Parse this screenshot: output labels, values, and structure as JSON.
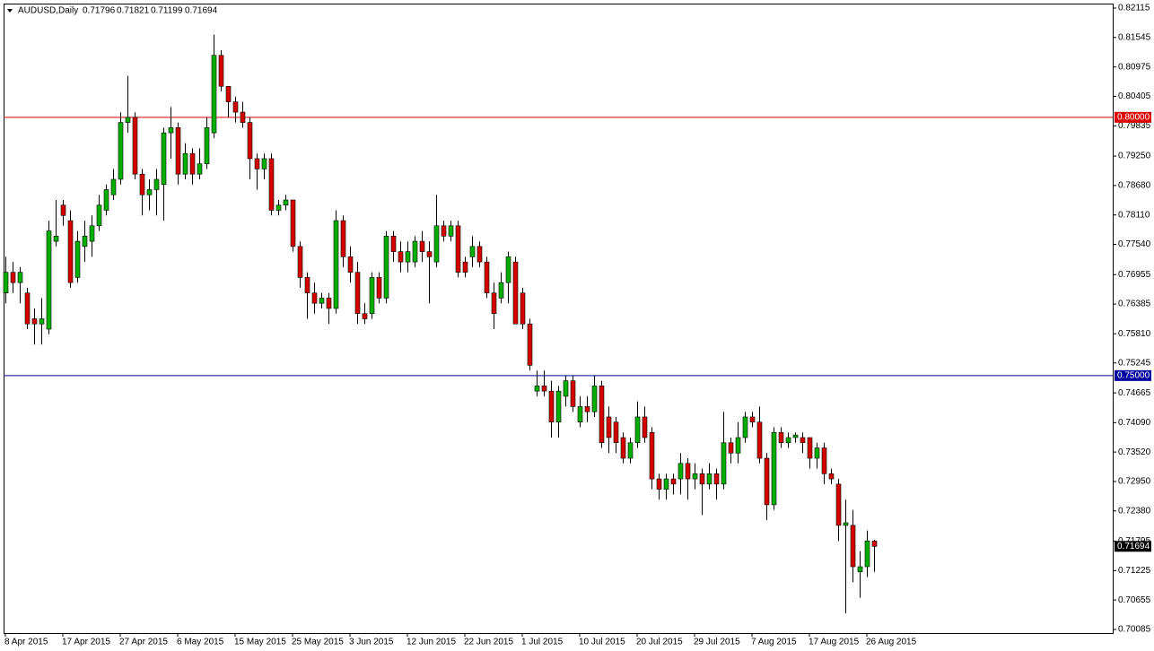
{
  "chart_data": {
    "type": "candlestick",
    "title": "AUDUSD,Daily",
    "up_color": "#00b000",
    "down_color": "#d40000",
    "categories": [
      "8 Apr 2015",
      null,
      null,
      null,
      null,
      null,
      null,
      null,
      "17 Apr 2015",
      null,
      null,
      null,
      null,
      null,
      null,
      null,
      "27 Apr 2015",
      null,
      null,
      null,
      null,
      null,
      null,
      null,
      "6 May 2015",
      null,
      null,
      null,
      null,
      null,
      null,
      null,
      "15 May 2015",
      null,
      null,
      null,
      null,
      null,
      null,
      null,
      "25 May 2015",
      null,
      null,
      null,
      null,
      null,
      null,
      null,
      "3 Jun 2015",
      null,
      null,
      null,
      null,
      null,
      null,
      null,
      "12 Jun 2015",
      null,
      null,
      null,
      null,
      null,
      null,
      null,
      "22 Jun 2015",
      null,
      null,
      null,
      null,
      null,
      null,
      null,
      "1 Jul 2015",
      null,
      null,
      null,
      null,
      null,
      null,
      null,
      "10 Jul 2015",
      null,
      null,
      null,
      null,
      null,
      null,
      null,
      "20 Jul 2015",
      null,
      null,
      null,
      null,
      null,
      null,
      null,
      "29 Jul 2015",
      null,
      null,
      null,
      null,
      null,
      null,
      null,
      "7 Aug 2015",
      null,
      null,
      null,
      null,
      null,
      null,
      null,
      "17 Aug 2015",
      null,
      null,
      null,
      null,
      null,
      null,
      null,
      "26 Aug 2015",
      null
    ],
    "open": [
      0.766,
      0.77,
      0.768,
      0.766,
      0.761,
      0.76,
      0.759,
      0.776,
      0.783,
      0.78,
      0.769,
      0.775,
      0.776,
      0.779,
      0.782,
      0.785,
      0.788,
      0.799,
      0.8,
      0.789,
      0.785,
      0.786,
      0.787,
      0.797,
      0.798,
      0.789,
      0.793,
      0.789,
      0.791,
      0.797,
      0.812,
      0.806,
      0.803,
      0.801,
      0.799,
      0.792,
      0.79,
      0.792,
      0.782,
      0.783,
      0.784,
      0.775,
      0.769,
      0.766,
      0.764,
      0.765,
      0.763,
      0.78,
      0.773,
      0.77,
      0.762,
      0.762,
      0.769,
      0.765,
      0.777,
      0.774,
      0.772,
      0.772,
      0.776,
      0.774,
      0.772,
      0.779,
      0.777,
      0.779,
      0.772,
      0.773,
      0.775,
      0.772,
      0.766,
      0.765,
      0.768,
      0.772,
      0.766,
      0.76,
      0.747,
      0.748,
      0.747,
      0.741,
      0.746,
      0.749,
      0.741,
      0.744,
      0.743,
      0.748,
      0.742,
      0.741,
      0.738,
      0.734,
      0.737,
      0.742,
      0.739,
      0.73,
      0.728,
      0.73,
      0.73,
      0.733,
      0.73,
      0.731,
      0.729,
      0.731,
      0.729,
      0.737,
      0.735,
      0.738,
      0.742,
      0.741,
      0.734,
      0.725,
      0.739,
      0.737,
      0.738,
      0.738,
      0.738,
      0.734,
      0.736,
      0.731,
      0.729,
      0.721,
      0.721,
      0.712,
      0.713,
      0.71796
    ],
    "high": [
      0.773,
      0.772,
      0.771,
      0.767,
      0.763,
      0.765,
      0.78,
      0.784,
      0.784,
      0.782,
      0.778,
      0.78,
      0.781,
      0.785,
      0.787,
      0.79,
      0.801,
      0.808,
      0.801,
      0.79,
      0.788,
      0.79,
      0.798,
      0.802,
      0.799,
      0.795,
      0.794,
      0.794,
      0.8,
      0.816,
      0.813,
      0.806,
      0.804,
      0.803,
      0.8,
      0.793,
      0.793,
      0.793,
      0.784,
      0.785,
      0.784,
      0.776,
      0.77,
      0.768,
      0.766,
      0.766,
      0.782,
      0.781,
      0.775,
      0.772,
      0.764,
      0.77,
      0.77,
      0.778,
      0.778,
      0.776,
      0.776,
      0.777,
      0.778,
      0.776,
      0.785,
      0.78,
      0.78,
      0.78,
      0.773,
      0.777,
      0.776,
      0.773,
      0.768,
      0.77,
      0.774,
      0.773,
      0.767,
      0.761,
      0.751,
      0.751,
      0.749,
      0.748,
      0.75,
      0.75,
      0.746,
      0.746,
      0.75,
      0.749,
      0.744,
      0.742,
      0.739,
      0.738,
      0.745,
      0.744,
      0.74,
      0.731,
      0.731,
      0.731,
      0.735,
      0.734,
      0.733,
      0.732,
      0.733,
      0.732,
      0.743,
      0.738,
      0.741,
      0.743,
      0.743,
      0.744,
      0.735,
      0.74,
      0.74,
      0.739,
      0.739,
      0.739,
      0.738,
      0.737,
      0.737,
      0.732,
      0.73,
      0.726,
      0.724,
      0.716,
      0.72,
      0.71821
    ],
    "low": [
      0.764,
      0.766,
      0.764,
      0.759,
      0.756,
      0.756,
      0.758,
      0.775,
      0.779,
      0.767,
      0.768,
      0.772,
      0.773,
      0.778,
      0.781,
      0.784,
      0.787,
      0.797,
      0.788,
      0.781,
      0.782,
      0.781,
      0.78,
      0.792,
      0.787,
      0.788,
      0.787,
      0.788,
      0.79,
      0.796,
      0.805,
      0.8,
      0.799,
      0.798,
      0.788,
      0.786,
      0.788,
      0.781,
      0.781,
      0.782,
      0.774,
      0.767,
      0.761,
      0.762,
      0.763,
      0.76,
      0.762,
      0.771,
      0.768,
      0.76,
      0.76,
      0.761,
      0.764,
      0.764,
      0.772,
      0.77,
      0.77,
      0.771,
      0.772,
      0.764,
      0.771,
      0.776,
      0.776,
      0.769,
      0.769,
      0.771,
      0.771,
      0.765,
      0.759,
      0.764,
      0.764,
      0.76,
      0.759,
      0.751,
      0.746,
      0.746,
      0.738,
      0.738,
      0.744,
      0.743,
      0.74,
      0.741,
      0.742,
      0.736,
      0.735,
      0.735,
      0.733,
      0.733,
      0.736,
      0.737,
      0.728,
      0.726,
      0.726,
      0.727,
      0.727,
      0.726,
      0.728,
      0.723,
      0.728,
      0.726,
      0.728,
      0.733,
      0.733,
      0.737,
      0.74,
      0.733,
      0.722,
      0.724,
      0.736,
      0.736,
      0.737,
      0.735,
      0.732,
      0.732,
      0.729,
      0.729,
      0.718,
      0.704,
      0.71,
      0.707,
      0.711,
      0.71199
    ],
    "close": [
      0.77,
      0.768,
      0.77,
      0.76,
      0.76,
      0.761,
      0.778,
      0.777,
      0.781,
      0.768,
      0.776,
      0.777,
      0.779,
      0.783,
      0.786,
      0.788,
      0.799,
      0.8,
      0.789,
      0.785,
      0.786,
      0.788,
      0.797,
      0.798,
      0.789,
      0.793,
      0.789,
      0.791,
      0.798,
      0.812,
      0.806,
      0.803,
      0.801,
      0.799,
      0.792,
      0.79,
      0.792,
      0.782,
      0.783,
      0.784,
      0.775,
      0.769,
      0.766,
      0.764,
      0.765,
      0.763,
      0.78,
      0.773,
      0.77,
      0.762,
      0.761,
      0.769,
      0.765,
      0.777,
      0.774,
      0.772,
      0.774,
      0.776,
      0.774,
      0.773,
      0.779,
      0.777,
      0.779,
      0.77,
      0.77,
      0.775,
      0.772,
      0.766,
      0.762,
      0.768,
      0.773,
      0.76,
      0.76,
      0.752,
      0.748,
      0.747,
      0.741,
      0.747,
      0.749,
      0.744,
      0.744,
      0.743,
      0.748,
      0.737,
      0.738,
      0.737,
      0.734,
      0.737,
      0.742,
      0.738,
      0.73,
      0.728,
      0.73,
      0.729,
      0.733,
      0.73,
      0.731,
      0.729,
      0.731,
      0.729,
      0.737,
      0.735,
      0.738,
      0.742,
      0.741,
      0.734,
      0.725,
      0.739,
      0.737,
      0.738,
      0.7385,
      0.737,
      0.734,
      0.736,
      0.731,
      0.73,
      0.721,
      0.7215,
      0.713,
      0.713,
      0.718,
      0.71694
    ],
    "ylim": [
      0.70085,
      0.82115
    ],
    "yticks": [
      0.82115,
      0.81545,
      0.80975,
      0.80405,
      0.79835,
      {
        "value": 0.7925,
        "label": "0.79250"
      },
      {
        "value": 0.7868,
        "label": "0.78680"
      },
      {
        "value": 0.7811,
        "label": "0.78110"
      },
      {
        "value": 0.7754,
        "label": "0.77540"
      },
      0.76955,
      0.76385,
      {
        "value": 0.7581,
        "label": "0.75810"
      },
      0.75245,
      0.74665,
      {
        "value": 0.7409,
        "label": "0.74090"
      },
      {
        "value": 0.7352,
        "label": "0.73520"
      },
      {
        "value": 0.7295,
        "label": "0.72950"
      },
      {
        "value": 0.7238,
        "label": "0.72380"
      },
      0.71795,
      0.71225,
      0.70655,
      0.70085
    ],
    "levels": [
      {
        "value": 0.8,
        "label": "0.80000",
        "color": "#e00000"
      },
      {
        "value": 0.75,
        "label": "0.75000",
        "color": "#0000a0"
      }
    ]
  }
}
